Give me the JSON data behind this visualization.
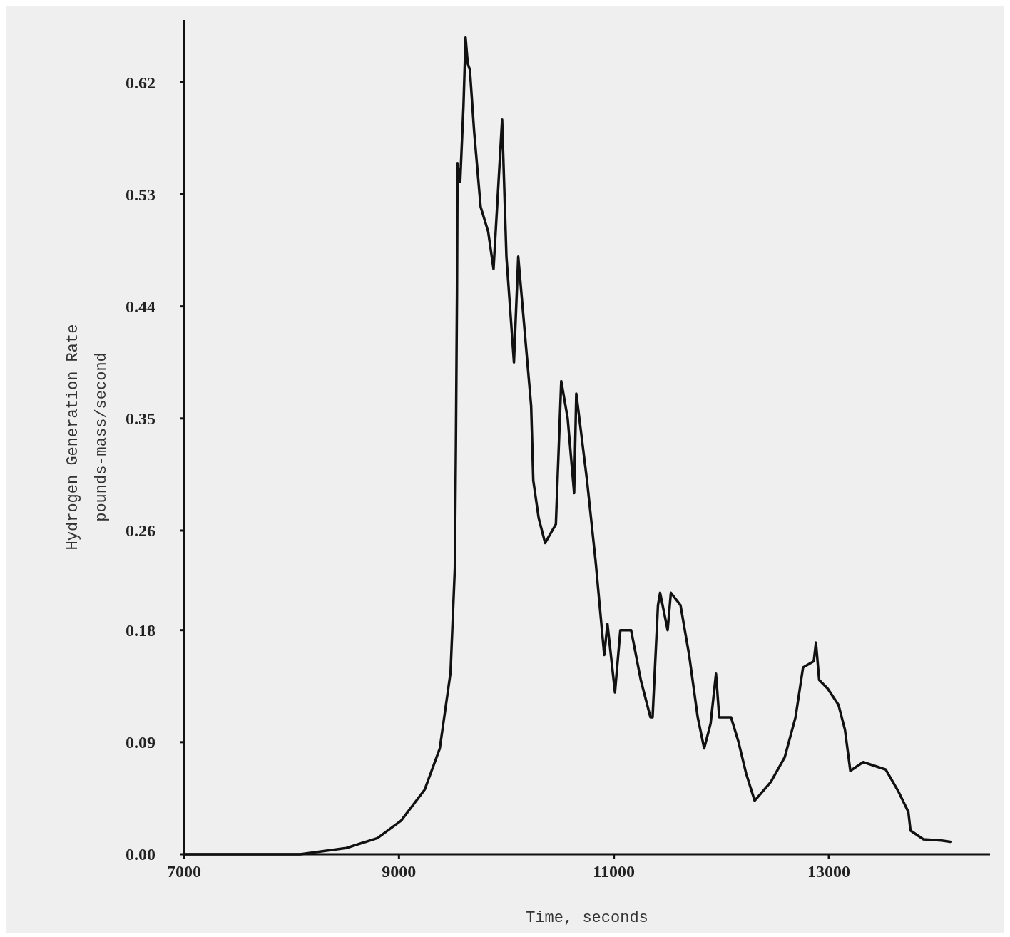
{
  "chart_data": {
    "type": "line",
    "xlabel": "Time, seconds",
    "ylabel": "Hydrogen Generation Rate\npounds-mass/second",
    "xlim": [
      7000,
      14500
    ],
    "xticks": [
      7000,
      9000,
      11000,
      13000
    ],
    "ylim": [
      0,
      0.67
    ],
    "yticks": [
      {
        "value": 0,
        "label": "0.00"
      },
      0.09,
      0.18,
      0.26,
      0.35,
      0.44,
      0.53,
      0.62
    ],
    "grid": false,
    "marker": "none",
    "line_style": "solid",
    "series": [
      {
        "color": "#111111",
        "x": [
          7000,
          8080,
          8510,
          8800,
          9020,
          9240,
          9380,
          9480,
          9520,
          9530,
          9540,
          9545,
          9570,
          9600,
          9620,
          9640,
          9660,
          9700,
          9760,
          9830,
          9880,
          9960,
          10000,
          10070,
          10110,
          10230,
          10250,
          10300,
          10360,
          10460,
          10510,
          10570,
          10630,
          10650,
          10750,
          10830,
          10910,
          10940,
          11010,
          11060,
          11160,
          11250,
          11340,
          11360,
          11410,
          11430,
          11500,
          11530,
          11620,
          11700,
          11780,
          11840,
          11900,
          11950,
          11980,
          12090,
          12160,
          12230,
          12310,
          12460,
          12590,
          12690,
          12760,
          12860,
          12880,
          12910,
          12990,
          13090,
          13150,
          13200,
          13320,
          13530,
          13650,
          13740,
          13760,
          13880,
          14050,
          14130
        ],
        "values": [
          0,
          0,
          0.005,
          0.013,
          0.027,
          0.052,
          0.085,
          0.146,
          0.23,
          0.33,
          0.45,
          0.555,
          0.54,
          0.6,
          0.656,
          0.635,
          0.63,
          0.58,
          0.52,
          0.5,
          0.47,
          0.59,
          0.48,
          0.395,
          0.48,
          0.36,
          0.3,
          0.27,
          0.25,
          0.265,
          0.38,
          0.35,
          0.29,
          0.37,
          0.3,
          0.235,
          0.16,
          0.185,
          0.13,
          0.18,
          0.18,
          0.14,
          0.11,
          0.11,
          0.2,
          0.21,
          0.18,
          0.21,
          0.2,
          0.16,
          0.11,
          0.085,
          0.105,
          0.145,
          0.11,
          0.11,
          0.09,
          0.065,
          0.043,
          0.058,
          0.078,
          0.11,
          0.15,
          0.155,
          0.17,
          0.14,
          0.133,
          0.12,
          0.1,
          0.067,
          0.074,
          0.068,
          0.05,
          0.034,
          0.019,
          0.012,
          0.011,
          0.01
        ]
      }
    ]
  }
}
